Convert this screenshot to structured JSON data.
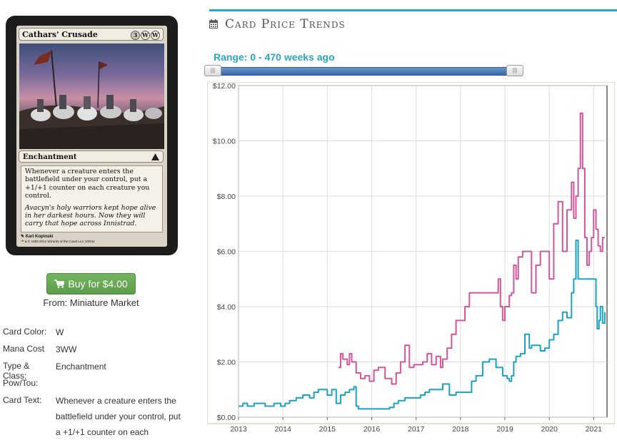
{
  "card": {
    "name": "Cathars' Crusade",
    "mana_symbols": [
      "3",
      "W",
      "W"
    ],
    "type_line": "Enchantment",
    "rules_text": "Whenever a creature enters the battlefield under your control, put a +1/+1 counter on each creature you control.",
    "flavor_text": "Avacyn's holy warriors kept hope alive in her darkest hours. Now they will carry that hope across Innistrad.",
    "artist": "Karl Kopinski",
    "copyright": "™ & © 1993-2012 Wizards of the Coast LLC 10/244"
  },
  "buy_button": {
    "label": "Buy for $4.00"
  },
  "vendor": "From: Miniature Market",
  "details": [
    {
      "label": "Card Color:",
      "value": "W"
    },
    {
      "label": "Mana Cost",
      "value": "3WW"
    },
    {
      "label": "Type & Class:",
      "value": "Enchantment"
    },
    {
      "label": "Pow/Tou:",
      "value": ""
    },
    {
      "label": "Card Text:",
      "value": "Whenever a creature enters the battlefield under your control, put a +1/+1 counter on each"
    }
  ],
  "trends": {
    "title": "Card Price Trends",
    "range_label": "Range: 0 - 470 weeks ago",
    "range_start_weeks": 0,
    "range_end_weeks": 470
  },
  "colors": {
    "accent": "#2ba5c6",
    "series_paper": "#d1569a",
    "series_online": "#1aa3c2",
    "buy_green": "#5d9c4b"
  },
  "chart_data": {
    "type": "line",
    "title": "",
    "xlabel": "",
    "ylabel": "",
    "xlim": [
      2013.0,
      2021.3
    ],
    "ylim": [
      0,
      12
    ],
    "x_ticks": [
      "2013",
      "2014",
      "2015",
      "2016",
      "2017",
      "2018",
      "2019",
      "2020",
      "2021"
    ],
    "y_ticks": [
      "$0.00",
      "$2.00",
      "$4.00",
      "$6.00",
      "$8.00",
      "$10.00",
      "$12.00"
    ],
    "grid": true,
    "series": [
      {
        "color": "#d1569a",
        "x": [
          2015.25,
          2015.3,
          2015.35,
          2015.45,
          2015.5,
          2015.55,
          2015.65,
          2015.75,
          2015.85,
          2015.95,
          2016.05,
          2016.15,
          2016.3,
          2016.45,
          2016.55,
          2016.65,
          2016.75,
          2016.85,
          2016.95,
          2017.05,
          2017.15,
          2017.25,
          2017.35,
          2017.45,
          2017.55,
          2017.6,
          2017.7,
          2017.8,
          2017.9,
          2018.0,
          2018.1,
          2018.2,
          2018.35,
          2018.4,
          2018.6,
          2018.8,
          2018.85,
          2018.9,
          2018.95,
          2019.0,
          2019.1,
          2019.15,
          2019.2,
          2019.25,
          2019.3,
          2019.4,
          2019.5,
          2019.6,
          2019.7,
          2019.8,
          2019.9,
          2020.0,
          2020.1,
          2020.2,
          2020.3,
          2020.4,
          2020.5,
          2020.55,
          2020.6,
          2020.65,
          2020.7,
          2020.75,
          2020.8,
          2020.85,
          2020.9,
          2020.95,
          2021.0,
          2021.05,
          2021.1,
          2021.15,
          2021.2,
          2021.25
        ],
        "values": [
          1.8,
          2.3,
          2.1,
          1.9,
          2.3,
          2.0,
          1.6,
          1.4,
          1.5,
          1.3,
          1.7,
          1.8,
          1.4,
          1.2,
          1.6,
          2.0,
          2.6,
          1.8,
          1.9,
          1.9,
          2.0,
          2.3,
          1.9,
          2.2,
          1.8,
          2.1,
          2.5,
          3.0,
          3.5,
          3.5,
          4.0,
          4.5,
          4.5,
          4.5,
          4.5,
          4.5,
          5.0,
          4.0,
          3.5,
          4.0,
          4.4,
          4.5,
          5.5,
          5.0,
          5.8,
          6.0,
          6.0,
          4.5,
          5.5,
          6.0,
          6.0,
          5.0,
          7.0,
          7.8,
          6.0,
          7.5,
          8.5,
          7.2,
          8.0,
          9.0,
          11.0,
          9.0,
          6.5,
          5.5,
          6.0,
          6.5,
          7.5,
          6.8,
          6.2,
          6.0,
          6.5,
          6.5
        ]
      },
      {
        "color": "#1aa3c2",
        "x": [
          2013.0,
          2013.1,
          2013.2,
          2013.35,
          2013.5,
          2013.6,
          2013.8,
          2013.95,
          2014.05,
          2014.15,
          2014.3,
          2014.45,
          2014.6,
          2014.7,
          2014.8,
          2014.9,
          2015.0,
          2015.1,
          2015.2,
          2015.3,
          2015.4,
          2015.5,
          2015.6,
          2015.65,
          2015.7,
          2015.9,
          2016.0,
          2016.2,
          2016.4,
          2016.5,
          2016.6,
          2016.75,
          2016.9,
          2017.0,
          2017.1,
          2017.2,
          2017.3,
          2017.45,
          2017.6,
          2017.75,
          2017.9,
          2018.0,
          2018.1,
          2018.15,
          2018.25,
          2018.35,
          2018.5,
          2018.65,
          2018.8,
          2018.95,
          2019.05,
          2019.1,
          2019.15,
          2019.2,
          2019.25,
          2019.35,
          2019.45,
          2019.55,
          2019.6,
          2019.7,
          2019.8,
          2019.9,
          2020.0,
          2020.1,
          2020.2,
          2020.3,
          2020.4,
          2020.5,
          2020.55,
          2020.6,
          2020.65,
          2020.7,
          2020.75,
          2020.9,
          2021.0,
          2021.05,
          2021.08,
          2021.12,
          2021.15,
          2021.2,
          2021.25
        ],
        "values": [
          0.4,
          0.5,
          0.4,
          0.5,
          0.5,
          0.4,
          0.5,
          0.4,
          0.5,
          0.6,
          0.7,
          0.8,
          0.7,
          0.9,
          1.0,
          1.0,
          0.8,
          1.0,
          0.5,
          0.8,
          0.9,
          1.0,
          1.1,
          0.4,
          0.3,
          0.3,
          0.3,
          0.3,
          0.35,
          0.5,
          0.6,
          0.7,
          0.7,
          0.7,
          0.8,
          0.9,
          1.0,
          1.0,
          1.2,
          0.8,
          0.9,
          0.9,
          0.9,
          0.9,
          1.3,
          1.5,
          2.0,
          2.1,
          1.8,
          1.5,
          1.4,
          1.3,
          1.5,
          2.0,
          2.2,
          2.3,
          3.0,
          2.5,
          2.6,
          2.6,
          2.4,
          2.5,
          2.8,
          3.0,
          3.5,
          3.8,
          3.6,
          4.5,
          5.0,
          6.4,
          5.0,
          5.0,
          5.0,
          5.0,
          5.0,
          4.0,
          3.2,
          3.5,
          4.0,
          3.4,
          3.8
        ]
      }
    ]
  }
}
